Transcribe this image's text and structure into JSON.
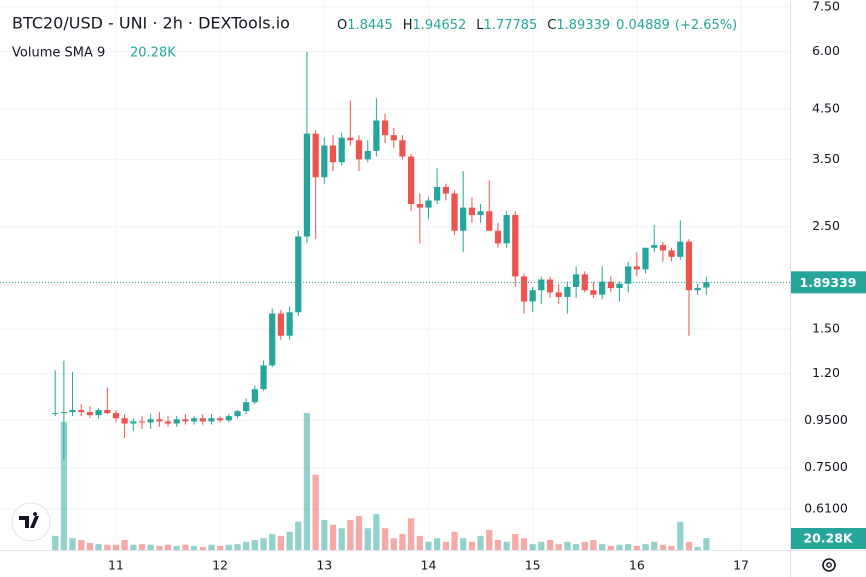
{
  "chart_data": {
    "type": "candlestick",
    "title": "BTC20/USD - UNI · 2h · DEXTools.io",
    "ohlc_labels": [
      "O",
      "H",
      "L",
      "C"
    ],
    "change": 0.04889,
    "change_percent": {
      "value": 2.65,
      "label": "(+2.65%)"
    },
    "volume_indicator": {
      "name": "Volume SMA 9",
      "value": 20.28,
      "label": "20.28K"
    },
    "up_color": "#26a69a",
    "down_color": "#ef5350",
    "log_scale": true,
    "grid": true,
    "x": [
      10.417,
      10.5,
      10.583,
      10.667,
      10.75,
      10.833,
      10.917,
      11.0,
      11.083,
      11.167,
      11.25,
      11.333,
      11.417,
      11.5,
      11.583,
      11.667,
      11.75,
      11.833,
      11.917,
      12.0,
      12.083,
      12.167,
      12.25,
      12.333,
      12.417,
      12.5,
      12.583,
      12.667,
      12.75,
      12.833,
      12.917,
      13.0,
      13.083,
      13.167,
      13.25,
      13.333,
      13.417,
      13.5,
      13.583,
      13.667,
      13.75,
      13.833,
      13.917,
      14.0,
      14.083,
      14.167,
      14.25,
      14.333,
      14.417,
      14.5,
      14.583,
      14.667,
      14.75,
      14.833,
      14.917,
      15.0,
      15.083,
      15.167,
      15.25,
      15.333,
      15.417,
      15.5,
      15.583,
      15.667,
      15.75,
      15.833,
      15.917,
      16.0,
      16.083,
      16.167,
      16.25,
      16.333,
      16.417,
      16.5,
      16.583,
      16.667
    ],
    "open": [
      0.98,
      0.985,
      0.99,
      1.0,
      0.99,
      0.975,
      1.0,
      0.985,
      0.96,
      0.935,
      0.945,
      0.94,
      0.955,
      0.945,
      0.935,
      0.955,
      0.945,
      0.96,
      0.945,
      0.96,
      0.95,
      0.97,
      0.995,
      1.04,
      1.11,
      1.25,
      1.62,
      1.45,
      1.63,
      2.38,
      3.98,
      3.2,
      3.75,
      3.45,
      3.9,
      3.85,
      3.5,
      3.65,
      4.25,
      3.95,
      3.85,
      3.55,
      2.8,
      2.75,
      2.85,
      3.05,
      2.95,
      2.45,
      2.75,
      2.65,
      2.7,
      2.45,
      2.3,
      2.65,
      1.95,
      1.72,
      1.82,
      1.92,
      1.8,
      1.76,
      1.85,
      1.97,
      1.82,
      1.78,
      1.9,
      1.84,
      1.88,
      2.05,
      2.02,
      2.25,
      2.28,
      2.22,
      2.15,
      2.32,
      1.82,
      1.8445
    ],
    "high": [
      1.22,
      1.28,
      1.21,
      1.03,
      1.02,
      1.01,
      1.12,
      1.0,
      0.98,
      0.96,
      0.97,
      0.98,
      0.99,
      0.97,
      0.97,
      0.98,
      0.97,
      0.98,
      0.98,
      0.97,
      0.98,
      1.0,
      1.06,
      1.13,
      1.28,
      1.66,
      1.65,
      1.68,
      2.45,
      6.0,
      4.05,
      3.9,
      3.95,
      4.0,
      4.7,
      3.95,
      3.85,
      4.75,
      4.4,
      4.1,
      3.95,
      3.6,
      2.95,
      2.9,
      3.35,
      3.1,
      3.0,
      3.3,
      2.9,
      2.8,
      3.15,
      2.55,
      2.7,
      2.7,
      1.98,
      1.85,
      1.95,
      1.95,
      1.88,
      1.9,
      2.05,
      2.0,
      1.9,
      2.05,
      1.95,
      1.9,
      2.1,
      2.2,
      2.25,
      2.52,
      2.32,
      2.25,
      2.58,
      2.35,
      1.88,
      1.94652
    ],
    "low": [
      0.97,
      0.78,
      0.97,
      0.97,
      0.96,
      0.96,
      0.98,
      0.94,
      0.87,
      0.9,
      0.91,
      0.91,
      0.92,
      0.92,
      0.92,
      0.93,
      0.93,
      0.93,
      0.93,
      0.94,
      0.94,
      0.96,
      0.98,
      1.03,
      1.1,
      1.24,
      1.42,
      1.42,
      1.6,
      2.3,
      2.35,
      3.1,
      3.3,
      3.4,
      3.75,
      3.3,
      3.45,
      3.55,
      3.8,
      3.7,
      3.5,
      2.7,
      2.3,
      2.6,
      2.8,
      2.85,
      2.4,
      2.2,
      2.55,
      2.55,
      2.45,
      2.25,
      2.25,
      1.85,
      1.62,
      1.63,
      1.7,
      1.75,
      1.7,
      1.62,
      1.75,
      1.8,
      1.75,
      1.74,
      1.8,
      1.72,
      1.8,
      1.95,
      1.98,
      2.2,
      2.1,
      2.1,
      2.12,
      1.45,
      1.78,
      1.77785
    ],
    "close": [
      0.985,
      0.99,
      1.0,
      0.99,
      0.975,
      1.0,
      0.985,
      0.96,
      0.935,
      0.945,
      0.94,
      0.955,
      0.945,
      0.935,
      0.955,
      0.945,
      0.96,
      0.945,
      0.96,
      0.95,
      0.97,
      0.995,
      1.04,
      1.11,
      1.25,
      1.62,
      1.45,
      1.63,
      2.38,
      3.98,
      3.2,
      3.75,
      3.45,
      3.9,
      3.85,
      3.5,
      3.65,
      4.25,
      3.95,
      3.85,
      3.55,
      2.8,
      2.75,
      2.85,
      3.05,
      2.95,
      2.45,
      2.75,
      2.65,
      2.7,
      2.45,
      2.3,
      2.65,
      1.95,
      1.72,
      1.82,
      1.92,
      1.8,
      1.76,
      1.85,
      1.97,
      1.82,
      1.78,
      1.9,
      1.84,
      1.88,
      2.05,
      2.02,
      2.25,
      2.28,
      2.22,
      2.15,
      2.32,
      1.82,
      1.84,
      1.89339
    ],
    "volume": [
      24,
      218,
      20,
      17,
      12,
      10,
      9,
      9,
      17,
      9,
      10,
      9,
      7,
      9,
      7,
      9,
      7,
      5,
      9,
      7,
      9,
      10,
      14,
      17,
      20,
      27,
      24,
      31,
      48,
      233,
      128,
      51,
      43,
      37,
      51,
      58,
      37,
      61,
      37,
      20,
      27,
      54,
      24,
      14,
      20,
      14,
      31,
      20,
      14,
      24,
      34,
      17,
      14,
      27,
      20,
      10,
      14,
      17,
      10,
      14,
      10,
      14,
      17,
      10,
      7,
      9,
      10,
      7,
      10,
      14,
      9,
      7,
      48,
      14,
      5,
      20.28
    ],
    "xlim": [
      9.887,
      17.47
    ],
    "xticks": [
      11,
      12,
      13,
      14,
      15,
      16,
      17
    ],
    "ylim": [
      0.497,
      7.76
    ],
    "yticks": [
      {
        "value": 7.5,
        "label": "7.50"
      },
      {
        "value": 6,
        "label": "6.00"
      },
      {
        "value": 4.5,
        "label": "4.50"
      },
      {
        "value": 3.5,
        "label": "3.50"
      },
      {
        "value": 2.5,
        "label": "2.50"
      },
      {
        "value": 1.5,
        "label": "1.50"
      },
      {
        "value": 1.2,
        "label": "1.20"
      },
      {
        "value": 0.95,
        "label": "0.9500"
      },
      {
        "value": 0.75,
        "label": "0.7500"
      },
      {
        "value": 0.61,
        "label": "0.6100"
      }
    ]
  }
}
